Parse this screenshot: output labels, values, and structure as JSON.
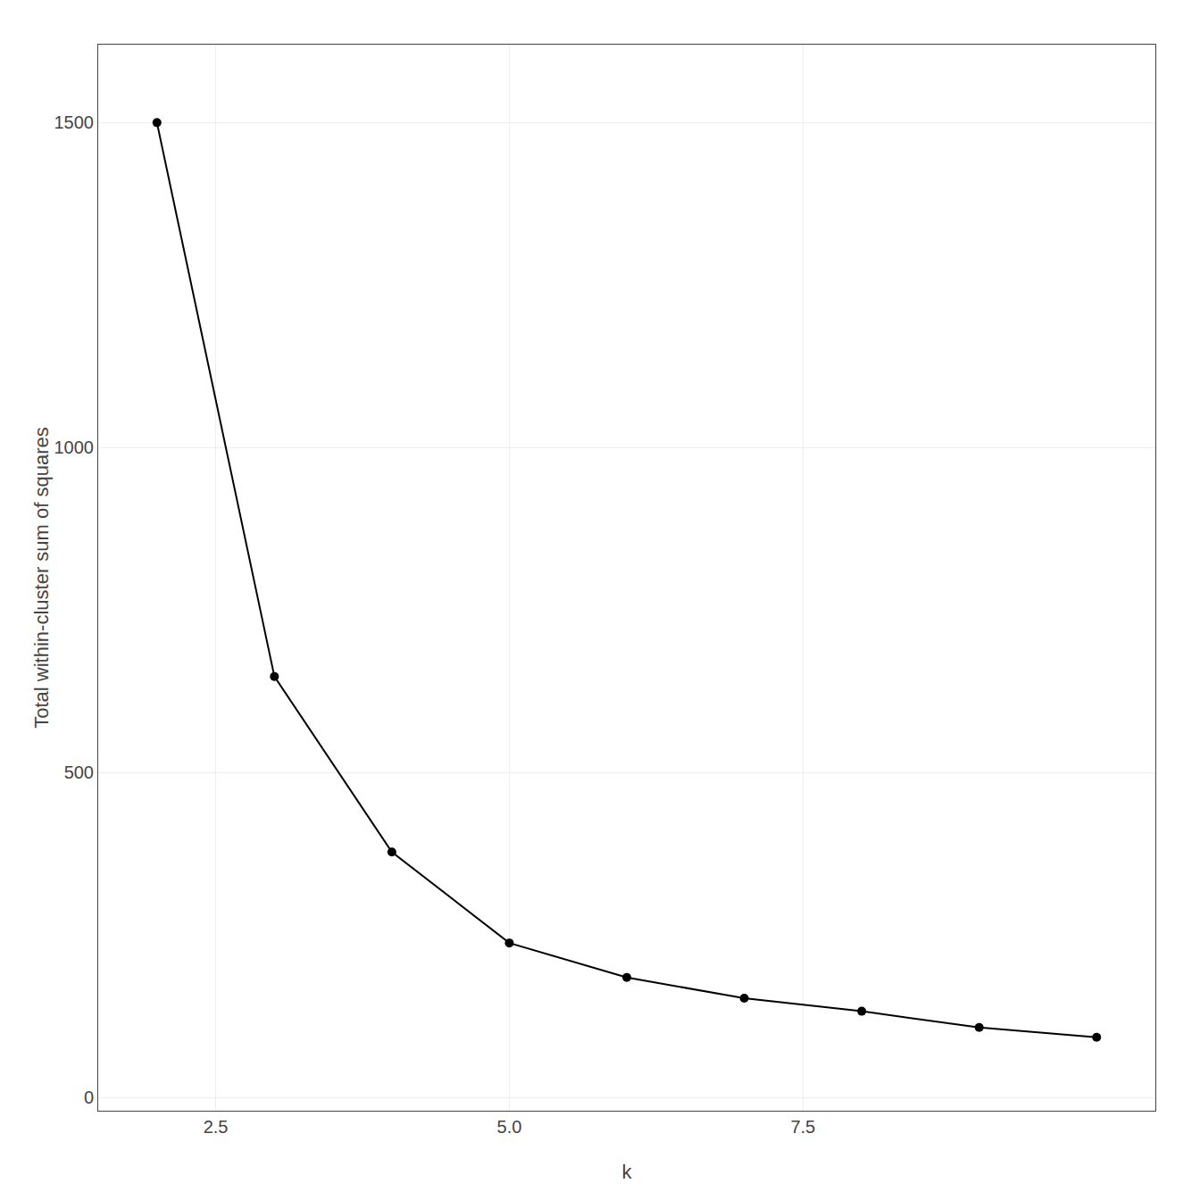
{
  "chart_data": {
    "type": "line",
    "x": [
      2,
      3,
      4,
      5,
      6,
      7,
      8,
      9,
      10
    ],
    "values": [
      1500,
      648,
      378,
      238,
      185,
      153,
      133,
      108,
      93
    ],
    "xlabel": "k",
    "ylabel": "Total within-cluster sum of squares",
    "xlim": [
      1.5,
      10.5
    ],
    "ylim": [
      -20,
      1620
    ],
    "xticks": [
      2.5,
      {
        "value": 5.0,
        "label": "5.0"
      },
      7.5
    ],
    "yticks": [
      0,
      500,
      1000,
      1500
    ],
    "color": "#000000",
    "marker": "circle",
    "grid": true
  }
}
